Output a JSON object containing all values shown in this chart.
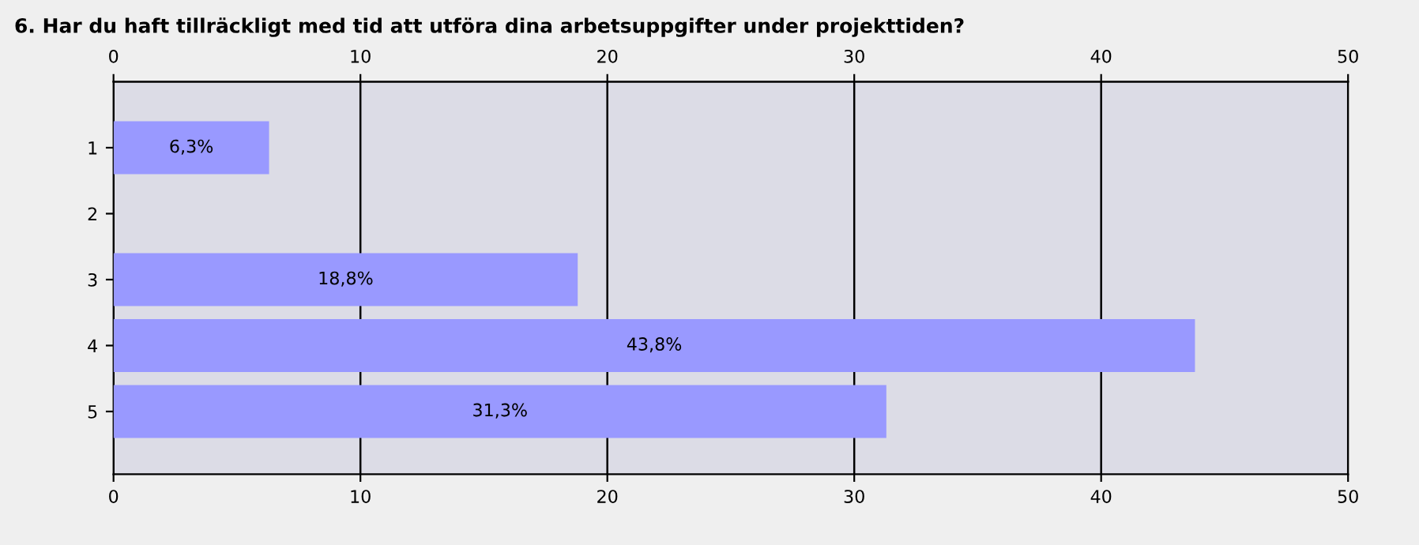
{
  "chart_data": {
    "type": "bar",
    "orientation": "horizontal",
    "title": "6. Har du haft tillräckligt med tid att utföra dina arbetsuppgifter under projekttiden?",
    "categories": [
      "1",
      "2",
      "3",
      "4",
      "5"
    ],
    "values": [
      6.3,
      null,
      18.8,
      43.8,
      31.3
    ],
    "value_labels": [
      "6,3%",
      null,
      "18,8%",
      "43,8%",
      "31,3%"
    ],
    "color": "#9999ff",
    "xlim": [
      0,
      50
    ],
    "xticks": [
      0,
      10,
      20,
      30,
      40,
      50
    ],
    "x2lim": [
      0,
      50
    ],
    "x2ticks": [
      0,
      10,
      20,
      30,
      40,
      50
    ],
    "grid": "x"
  }
}
